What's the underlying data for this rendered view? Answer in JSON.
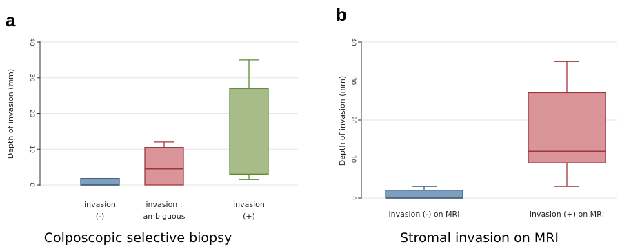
{
  "chart_data": [
    {
      "type": "box",
      "panel_label": "a",
      "caption": "Colposcopic selective biopsy",
      "ylabel": "Depth of invasion (mm)",
      "ylim": [
        0,
        40
      ],
      "yticks": [
        0,
        10,
        20,
        30,
        40
      ],
      "grid": true,
      "categories": [
        [
          "invasion",
          "(-)"
        ],
        [
          "invasion :",
          "ambiguous"
        ],
        [
          "invasion",
          "(+)"
        ]
      ],
      "boxes": [
        {
          "min": 0,
          "q1": 0,
          "median": 0,
          "q3": 1.8,
          "max": 1.8,
          "fill": "#7f9fc1",
          "stroke": "#3d5a7a"
        },
        {
          "min": 0,
          "q1": 0,
          "median": 4.5,
          "q3": 10.5,
          "max": 12,
          "fill": "#d9959a",
          "stroke": "#a0353d"
        },
        {
          "min": 1.5,
          "q1": 3,
          "median": 3,
          "q3": 27,
          "max": 35,
          "fill": "#a8bc8a",
          "stroke": "#5d8a33"
        }
      ]
    },
    {
      "type": "box",
      "panel_label": "b",
      "caption": "Stromal invasion on MRI",
      "ylabel": "Depth of invasion (mm)",
      "ylim": [
        0,
        40
      ],
      "yticks": [
        0,
        10,
        20,
        30,
        40
      ],
      "grid": true,
      "categories": [
        [
          "invasion (-) on MRI"
        ],
        [
          "invasion (+) on MRI"
        ]
      ],
      "boxes": [
        {
          "min": 0,
          "q1": 0,
          "median": 0,
          "q3": 2,
          "max": 3,
          "fill": "#7f9fc1",
          "stroke": "#3d5a7a"
        },
        {
          "min": 3,
          "q1": 9,
          "median": 12,
          "q3": 27,
          "max": 35,
          "fill": "#d9959a",
          "stroke": "#a0353d"
        }
      ]
    }
  ]
}
